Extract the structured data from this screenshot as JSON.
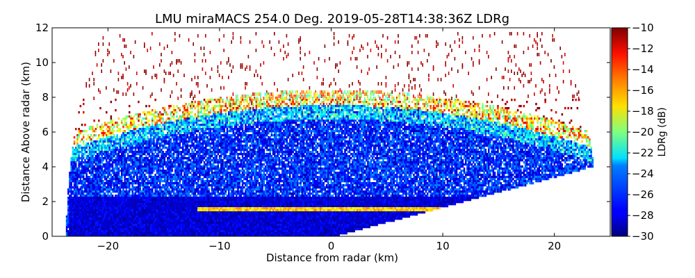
{
  "chart_data": {
    "type": "heatmap",
    "title": "LMU miraMACS 254.0 Deg. 2019-05-28T14:38:36Z  LDRg",
    "xlabel": "Distance from radar (km)",
    "ylabel": "Distance Above radar  (km)",
    "xlim": [
      -25,
      25
    ],
    "ylim": [
      0,
      12
    ],
    "xticks": [
      -20,
      -10,
      0,
      10,
      20
    ],
    "xtick_labels": [
      "−20",
      "−10",
      "0",
      "10",
      "20"
    ],
    "yticks": [
      0,
      2,
      4,
      6,
      8,
      10,
      12
    ],
    "ytick_labels": [
      "0",
      "2",
      "4",
      "6",
      "8",
      "10",
      "12"
    ],
    "colorbar": {
      "label": "LDRg (dB)",
      "range": [
        -30,
        -10
      ],
      "ticks": [
        -30,
        -28,
        -26,
        -24,
        -22,
        -20,
        -18,
        -16,
        -14,
        -12,
        -10
      ],
      "tick_labels": [
        "−30",
        "−28",
        "−26",
        "−24",
        "−22",
        "−20",
        "−18",
        "−16",
        "−14",
        "−12",
        "−10"
      ],
      "colormap": "jet"
    },
    "regions": [
      {
        "name": "low-level dense echo",
        "x_range": [
          -23.5,
          23.5
        ],
        "z_range": [
          0,
          2.5
        ],
        "ldr_db": -29
      },
      {
        "name": "cloud body",
        "x_range": [
          -23,
          23
        ],
        "z_range": [
          2.5,
          7.5
        ],
        "ldr_db": -27
      },
      {
        "name": "melting layer bright band",
        "altitude_km": 1.6,
        "x_range": [
          -12,
          12
        ],
        "ldr_db": -17
      },
      {
        "name": "cloud top fringe",
        "altitude_km": 8,
        "x_range": [
          -22,
          22
        ],
        "ldr_db": -15
      },
      {
        "name": "sparse noise aloft",
        "z_range": [
          8,
          12
        ],
        "ldr_db": -11
      }
    ],
    "beam_sector": {
      "elevation_limit_deg": 11.5,
      "max_range_km": 23.5
    }
  },
  "colors": {
    "jet_low": "#00007f",
    "jet_high": "#7f0000",
    "axes": "#000000",
    "background": "#ffffff"
  }
}
